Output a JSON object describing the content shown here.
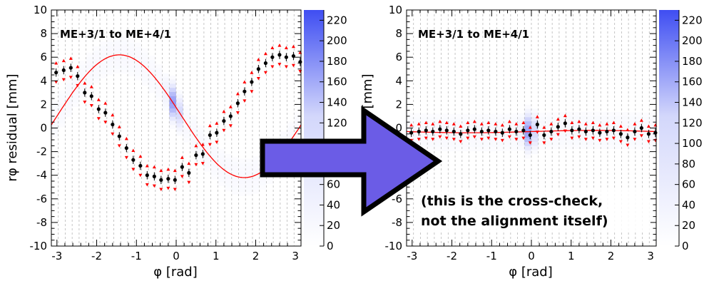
{
  "chart_data": [
    {
      "type": "scatter",
      "title": "ME+3/1 to ME+4/1",
      "xlabel": "φ [rad]",
      "ylabel": "rφ residual [mm]",
      "xlim": [
        -3.14,
        3.14
      ],
      "ylim": [
        -10,
        10
      ],
      "xticks": [
        "-3",
        "-2",
        "-1",
        "0",
        "1",
        "2",
        "3"
      ],
      "yticks": [
        "-10",
        "-8",
        "-6",
        "-4",
        "-2",
        "0",
        "2",
        "4",
        "6",
        "8",
        "10"
      ],
      "colorbar": {
        "range": [
          0,
          230
        ],
        "ticks": [
          "0",
          "20",
          "40",
          "60",
          "80",
          "100",
          "120",
          "140",
          "160",
          "180",
          "200",
          "220"
        ]
      },
      "fit_color": "#ff0000",
      "point_color": "#000000",
      "bound_marker_color": "#ff0000",
      "fit": {
        "type": "sinusoid",
        "offset": 1.0,
        "amplitude": 5.2,
        "phase": 3.0
      },
      "points": {
        "x": [
          -3.02,
          -2.83,
          -2.65,
          -2.48,
          -2.3,
          -2.13,
          -1.95,
          -1.78,
          -1.6,
          -1.43,
          -1.25,
          -1.08,
          -0.9,
          -0.73,
          -0.55,
          -0.38,
          -0.2,
          -0.03,
          0.15,
          0.32,
          0.5,
          0.67,
          0.85,
          1.02,
          1.2,
          1.37,
          1.55,
          1.72,
          1.9,
          2.07,
          2.25,
          2.42,
          2.6,
          2.77,
          2.95,
          3.12
        ],
        "y": [
          4.7,
          4.9,
          5.1,
          4.4,
          3.0,
          2.7,
          1.6,
          1.3,
          0.3,
          -0.7,
          -1.7,
          -2.7,
          -3.2,
          -4.0,
          -4.1,
          -4.4,
          -4.3,
          -4.4,
          -3.3,
          -3.8,
          -2.3,
          -2.2,
          -0.6,
          -0.4,
          0.6,
          1.0,
          2.1,
          3.1,
          3.9,
          5.0,
          5.5,
          6.0,
          6.2,
          6.0,
          6.1,
          5.6
        ]
      }
    },
    {
      "type": "scatter",
      "title": "ME+3/1 to ME+4/1",
      "xlabel": "φ [rad]",
      "ylabel": "rφ residual [mm]",
      "xlim": [
        -3.14,
        3.14
      ],
      "ylim": [
        -10,
        10
      ],
      "xticks": [
        "-3",
        "-2",
        "-1",
        "0",
        "1",
        "2",
        "3"
      ],
      "yticks": [
        "-10",
        "-8",
        "-6",
        "-4",
        "-2",
        "0",
        "2",
        "4",
        "6",
        "8",
        "10"
      ],
      "colorbar": {
        "range": [
          0,
          230
        ],
        "ticks": [
          "0",
          "20",
          "40",
          "60",
          "80",
          "100",
          "120",
          "140",
          "160",
          "180",
          "200",
          "220"
        ]
      },
      "fit_color": "#ff0000",
      "point_color": "#000000",
      "bound_marker_color": "#ff0000",
      "fit": {
        "type": "sinusoid",
        "offset": -0.3,
        "amplitude": 0.1,
        "phase": 0.0
      },
      "points": {
        "x": [
          -3.02,
          -2.83,
          -2.65,
          -2.48,
          -2.3,
          -2.13,
          -1.95,
          -1.78,
          -1.6,
          -1.43,
          -1.25,
          -1.08,
          -0.9,
          -0.73,
          -0.55,
          -0.38,
          -0.2,
          -0.03,
          0.15,
          0.32,
          0.5,
          0.67,
          0.85,
          1.02,
          1.2,
          1.37,
          1.55,
          1.72,
          1.9,
          2.07,
          2.25,
          2.42,
          2.6,
          2.77,
          2.95,
          3.12
        ],
        "y": [
          -0.4,
          -0.3,
          -0.2,
          -0.3,
          -0.1,
          -0.2,
          -0.3,
          -0.5,
          -0.2,
          -0.1,
          -0.3,
          -0.2,
          -0.3,
          -0.4,
          -0.1,
          -0.3,
          -0.2,
          -0.6,
          0.3,
          -0.6,
          -0.3,
          0.1,
          0.4,
          -0.2,
          -0.1,
          -0.3,
          -0.2,
          -0.4,
          -0.3,
          -0.2,
          -0.5,
          -0.8,
          -0.3,
          0.0,
          -0.5,
          -0.4
        ]
      }
    }
  ],
  "annotation": {
    "arrow_color": "#6b5ce6",
    "line1": "(this is the cross-check,",
    "line2": "not the alignment itself)"
  }
}
